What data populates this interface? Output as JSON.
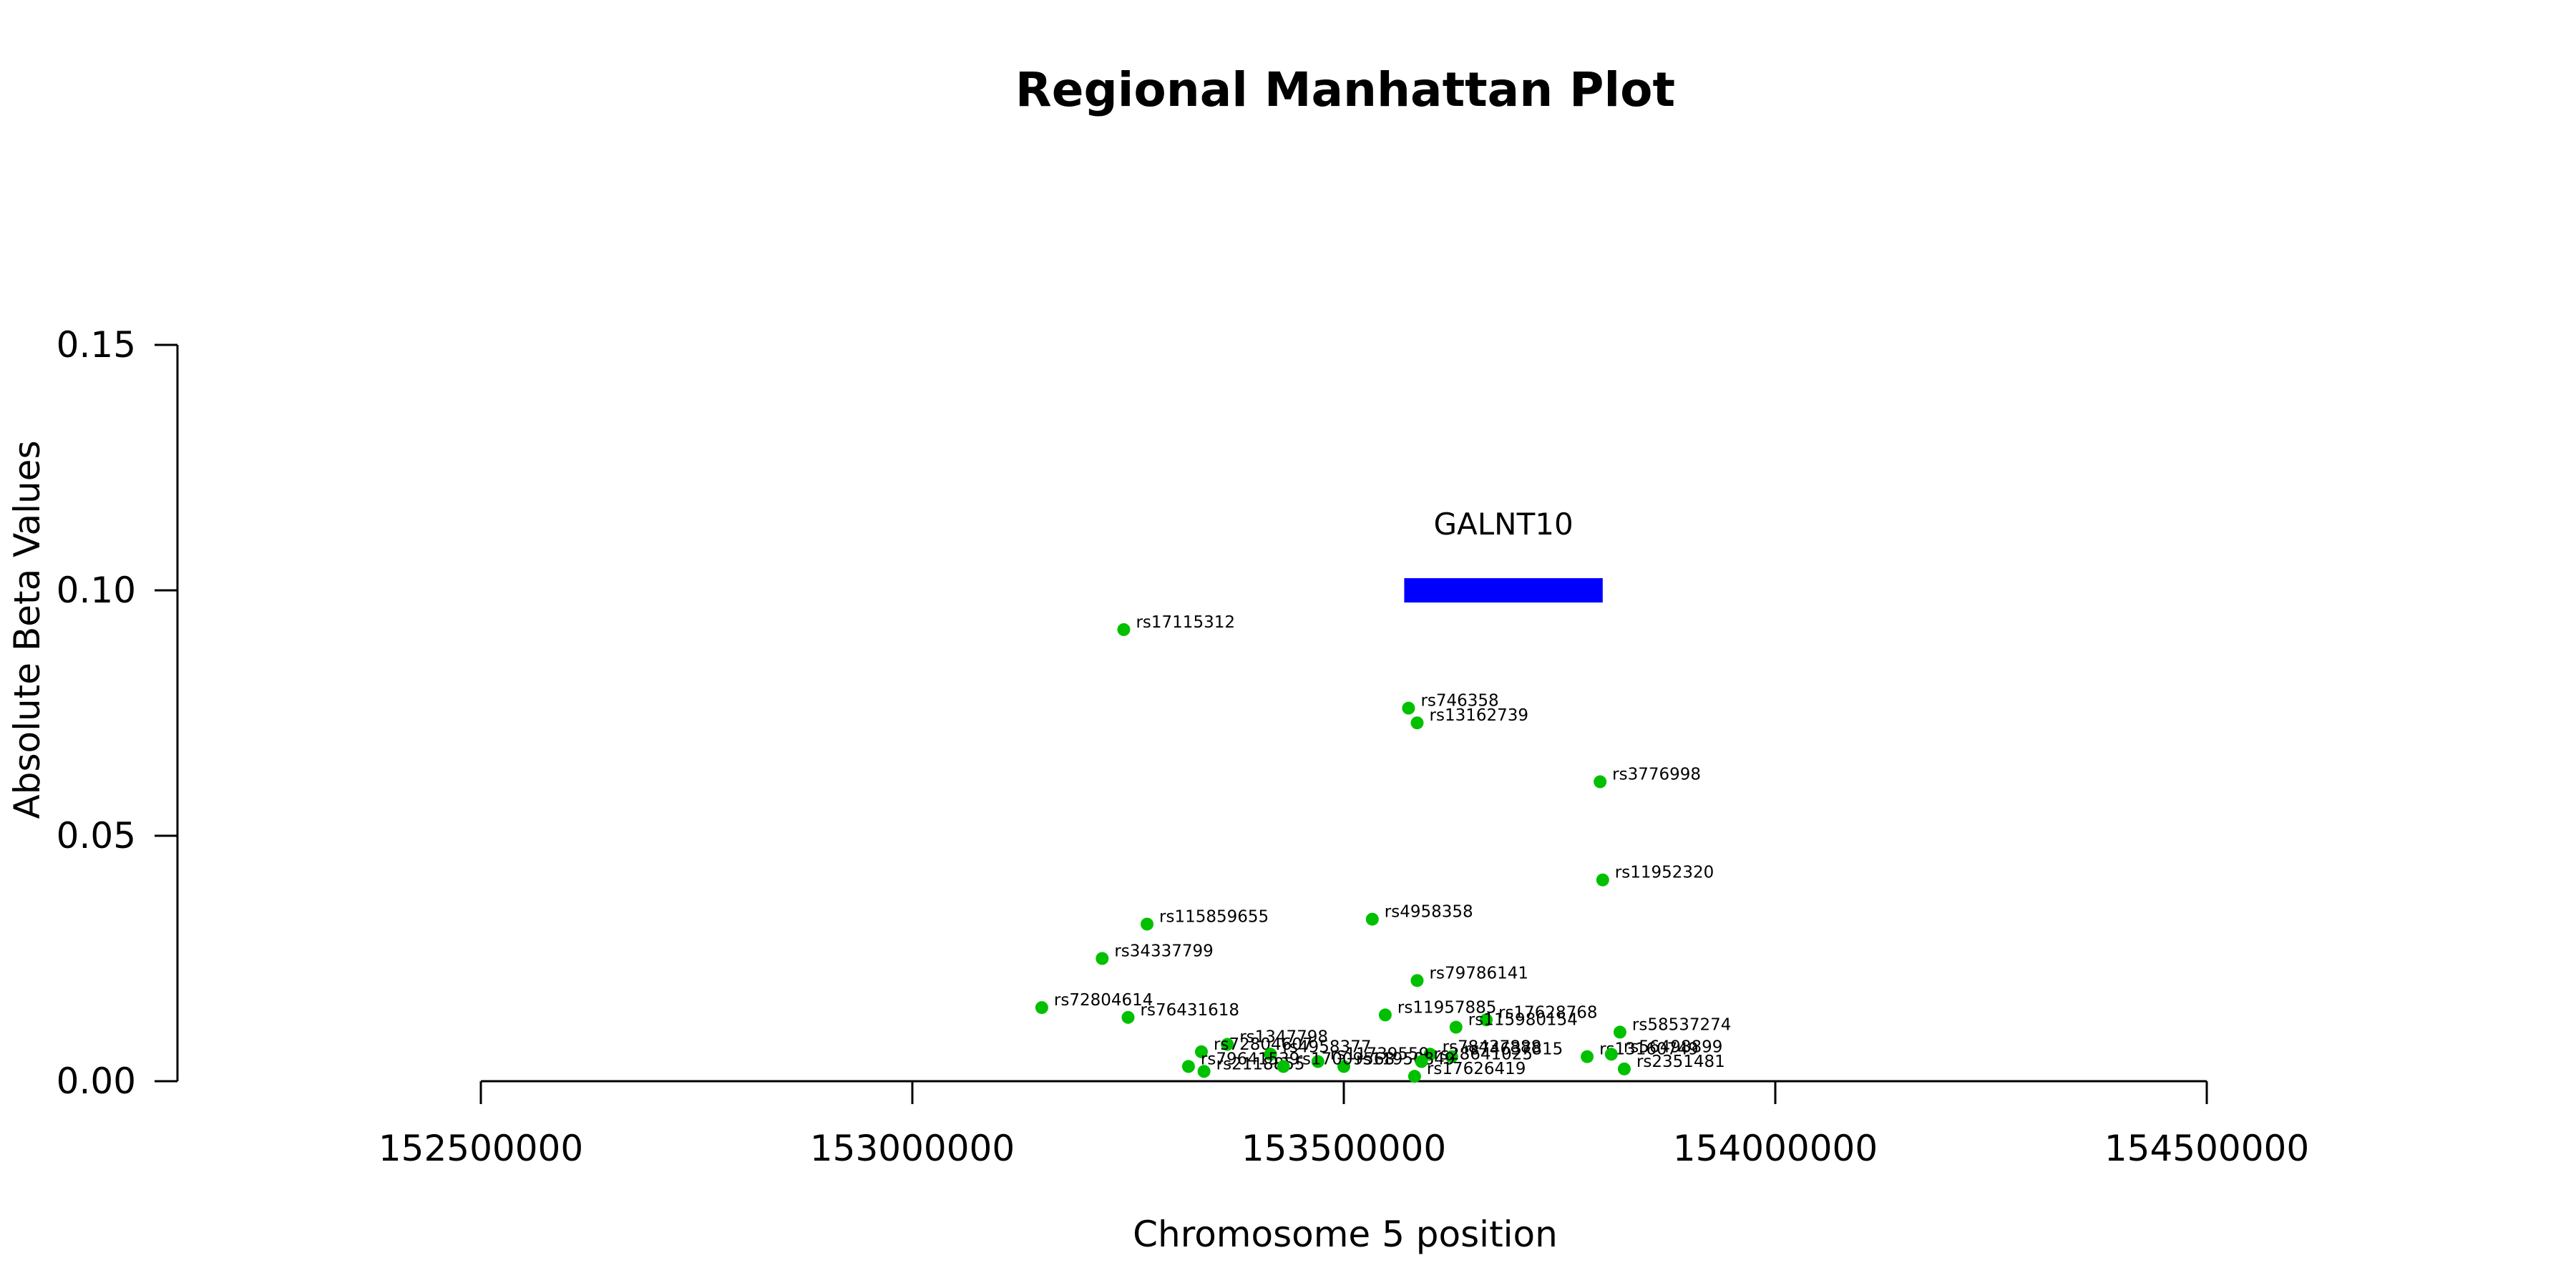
{
  "chart_data": {
    "type": "scatter",
    "title": "Regional Manhattan Plot",
    "xlabel": "Chromosome 5 position",
    "ylabel": "Absolute Beta Values",
    "xlim": [
      152500000,
      154500000
    ],
    "ylim": [
      0,
      0.15
    ],
    "x_ticks": [
      152500000,
      153000000,
      153500000,
      154000000,
      154500000
    ],
    "y_ticks": [
      0.0,
      0.05,
      0.1,
      0.15
    ],
    "y_tick_labels": [
      "0.00",
      "0.05",
      "0.10",
      "0.15"
    ],
    "grid": false,
    "point_color": "#00c000",
    "gene": {
      "name": "GALNT10",
      "start": 153570000,
      "end": 153800000,
      "y": 0.1,
      "color": "#0000ff"
    },
    "points": [
      {
        "id": "rs17115312",
        "x": 153245000,
        "y": 0.092
      },
      {
        "id": "rs746358",
        "x": 153575000,
        "y": 0.076
      },
      {
        "id": "rs13162739",
        "x": 153585000,
        "y": 0.073
      },
      {
        "id": "rs3776998",
        "x": 153797000,
        "y": 0.061
      },
      {
        "id": "rs11952320",
        "x": 153800000,
        "y": 0.041
      },
      {
        "id": "rs4958358",
        "x": 153533000,
        "y": 0.033
      },
      {
        "id": "rs115859655",
        "x": 153272000,
        "y": 0.032
      },
      {
        "id": "rs34337799",
        "x": 153220000,
        "y": 0.025
      },
      {
        "id": "rs79786141",
        "x": 153585000,
        "y": 0.0205
      },
      {
        "id": "rs72804614",
        "x": 153150000,
        "y": 0.015
      },
      {
        "id": "rs76431618",
        "x": 153250000,
        "y": 0.013
      },
      {
        "id": "rs11957885",
        "x": 153548000,
        "y": 0.0135
      },
      {
        "id": "rs17628768",
        "x": 153665000,
        "y": 0.0125
      },
      {
        "id": "rs115980154",
        "x": 153630000,
        "y": 0.011
      },
      {
        "id": "rs58537274",
        "x": 153820000,
        "y": 0.01
      },
      {
        "id": "rs1347798",
        "x": 153365000,
        "y": 0.0075
      },
      {
        "id": "rs72804607",
        "x": 153335000,
        "y": 0.006
      },
      {
        "id": "rs4958377",
        "x": 153415000,
        "y": 0.0055
      },
      {
        "id": "rs13160749",
        "x": 153782000,
        "y": 0.005
      },
      {
        "id": "rs56498899",
        "x": 153810000,
        "y": 0.0055
      },
      {
        "id": "rs78437888",
        "x": 153600000,
        "y": 0.0055
      },
      {
        "id": "rs74637815",
        "x": 153625000,
        "y": 0.005
      },
      {
        "id": "rs11739559",
        "x": 153470000,
        "y": 0.004
      },
      {
        "id": "rs79641539",
        "x": 153320000,
        "y": 0.003
      },
      {
        "id": "rs11950849",
        "x": 153500000,
        "y": 0.003
      },
      {
        "id": "rs28641025",
        "x": 153590000,
        "y": 0.004
      },
      {
        "id": "rs2351481",
        "x": 153825000,
        "y": 0.0025
      },
      {
        "id": "rs2118855",
        "x": 153338000,
        "y": 0.002
      },
      {
        "id": "rs17009568",
        "x": 153430000,
        "y": 0.003
      },
      {
        "id": "rs17626419",
        "x": 153582000,
        "y": 0.001
      }
    ]
  }
}
